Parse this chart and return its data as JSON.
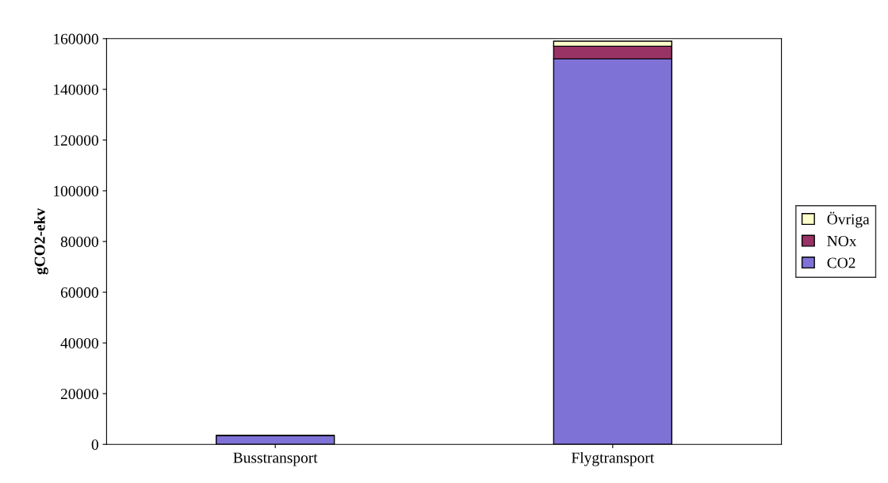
{
  "chart_data": {
    "type": "bar",
    "ylabel": "gCO2-ekv",
    "categories": [
      "Busstransport",
      "Flygtransport"
    ],
    "stacked": true,
    "series": [
      {
        "name": "CO2",
        "color": "#7f72d6",
        "values": [
          3500,
          152000
        ]
      },
      {
        "name": "NOx",
        "color": "#993366",
        "values": [
          null,
          5000
        ]
      },
      {
        "name": "Övriga",
        "color": "#ffffcc",
        "values": [
          null,
          2000
        ]
      }
    ],
    "ylim": [
      0,
      160000
    ],
    "yticks": [
      0,
      20000,
      40000,
      60000,
      80000,
      100000,
      120000,
      140000,
      160000
    ],
    "grid": false,
    "legend": "right"
  }
}
